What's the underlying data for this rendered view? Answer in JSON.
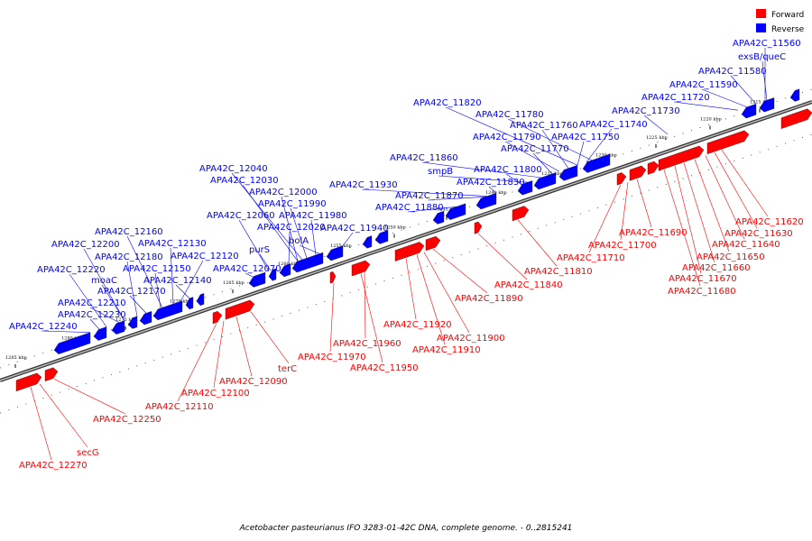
{
  "caption": "Acetobacter pasteurianus IFO 3283-01-42C DNA, complete genome. - 0..2815241",
  "legend": [
    {
      "label": "Forward",
      "color": "#ff0000"
    },
    {
      "label": "Reverse",
      "color": "#0000ff"
    }
  ],
  "colors": {
    "forward": "#ff0000",
    "reverse": "#0000ff",
    "backbone": "#808080"
  },
  "ticks": [
    "1215 kbp",
    "1220 kbp",
    "1225 kbp",
    "1230 kbp",
    "1235 kbp",
    "1240 kbp",
    "1245 kbp",
    "1250 kbp",
    "1255 kbp",
    "1260 kbp",
    "1265 kbp",
    "1270 kbp",
    "1275 kbp",
    "1280 kbp",
    "1285 kbp"
  ],
  "reverse_genes": [
    "APA42C_11560",
    "exsB/queC",
    "APA42C_11580",
    "APA42C_11590",
    "APA42C_11720",
    "APA42C_11730",
    "APA42C_11820",
    "APA42C_11780",
    "APA42C_11760",
    "APA42C_11740",
    "APA42C_11790",
    "APA42C_11750",
    "APA42C_11770",
    "APA42C_11860",
    "smpB",
    "APA42C_11800",
    "APA42C_11830",
    "APA42C_11870",
    "APA42C_11930",
    "APA42C_11880",
    "APA42C_12040",
    "APA42C_12030",
    "APA42C_12000",
    "APA42C_11990",
    "APA42C_12060",
    "APA42C_11980",
    "APA42C_12020",
    "APA42C_11940",
    "bolA",
    "purS",
    "APA42C_12160",
    "APA42C_12130",
    "APA42C_12200",
    "APA42C_12180",
    "APA42C_12120",
    "APA42C_12220",
    "APA42C_12150",
    "APA42C_12070",
    "moaC",
    "APA42C_12140",
    "APA42C_12170",
    "APA42C_12210",
    "APA42C_12230",
    "APA42C_12240"
  ],
  "forward_genes": [
    "APA42C_11620",
    "APA42C_11630",
    "APA42C_11640",
    "APA42C_11650",
    "APA42C_11660",
    "APA42C_11670",
    "APA42C_11680",
    "APA42C_11690",
    "APA42C_11700",
    "APA42C_11710",
    "APA42C_11810",
    "APA42C_11840",
    "APA42C_11890",
    "APA42C_11920",
    "APA42C_11900",
    "APA42C_11910",
    "APA42C_11960",
    "APA42C_11970",
    "APA42C_11950",
    "terC",
    "APA42C_12090",
    "APA42C_12100",
    "APA42C_12110",
    "APA42C_12250",
    "secG",
    "APA42C_12270"
  ]
}
